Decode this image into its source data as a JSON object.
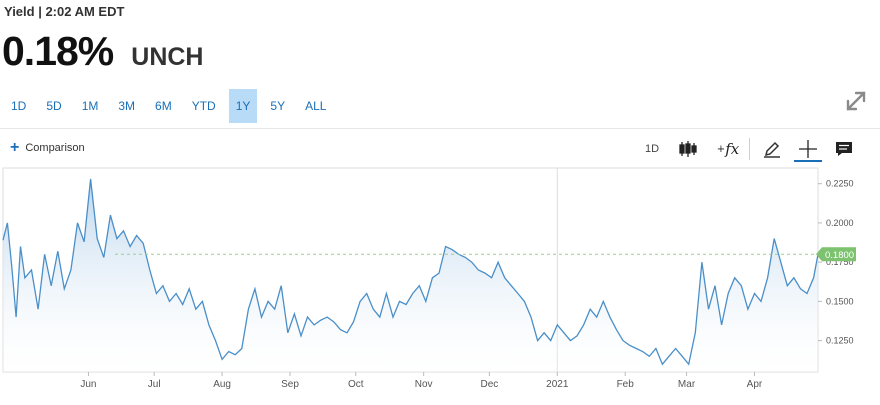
{
  "header": {
    "status_text": "Yield | 2:02 AM EDT",
    "price": "0.18%",
    "change": "UNCH"
  },
  "range_tabs": [
    {
      "label": "1D",
      "active": false
    },
    {
      "label": "5D",
      "active": false
    },
    {
      "label": "1M",
      "active": false
    },
    {
      "label": "3M",
      "active": false
    },
    {
      "label": "6M",
      "active": false
    },
    {
      "label": "YTD",
      "active": false
    },
    {
      "label": "1Y",
      "active": true
    },
    {
      "label": "5Y",
      "active": false
    },
    {
      "label": "ALL",
      "active": false
    }
  ],
  "toolbar": {
    "comparison_label": "Comparison",
    "interval_label": "1D",
    "icons": [
      "candlestick-icon",
      "function-icon",
      "pencil-icon",
      "crosshair-icon",
      "comment-icon",
      "expand-icon"
    ]
  },
  "colors": {
    "accent": "#1a6fb7",
    "line": "#4a8fc8",
    "fill": "#dbe9f6",
    "current_value_badge": "#7cc26f"
  },
  "chart_data": {
    "type": "area",
    "title": "",
    "xlabel": "",
    "ylabel": "",
    "x_tick_labels": [
      "Jun",
      "Jul",
      "Aug",
      "Sep",
      "Oct",
      "Nov",
      "Dec",
      "2021",
      "Feb",
      "Mar",
      "Apr"
    ],
    "y_tick_labels": [
      "0.2250",
      "0.2000",
      "0.1750",
      "0.1500",
      "0.1250"
    ],
    "y_ticks": [
      0.225,
      0.2,
      0.175,
      0.15,
      0.125
    ],
    "ylim": [
      0.105,
      0.235
    ],
    "x_range": [
      "2020-04-23",
      "2021-04-30"
    ],
    "current_value": 0.18,
    "current_value_label": "0.1800",
    "grid": "vertical line at year boundary",
    "series": [
      {
        "dates": [
          "2020-04-23",
          "2020-04-25",
          "2020-04-27",
          "2020-04-29",
          "2020-05-01",
          "2020-05-03",
          "2020-05-06",
          "2020-05-09",
          "2020-05-12",
          "2020-05-15",
          "2020-05-18",
          "2020-05-21",
          "2020-05-24",
          "2020-05-27",
          "2020-05-30",
          "2020-06-02",
          "2020-06-05",
          "2020-06-08",
          "2020-06-11",
          "2020-06-14",
          "2020-06-17",
          "2020-06-20",
          "2020-06-23",
          "2020-06-26",
          "2020-06-29",
          "2020-07-02",
          "2020-07-05",
          "2020-07-08",
          "2020-07-11",
          "2020-07-14",
          "2020-07-17",
          "2020-07-20",
          "2020-07-23",
          "2020-07-26",
          "2020-07-29",
          "2020-08-01",
          "2020-08-04",
          "2020-08-07",
          "2020-08-10",
          "2020-08-13",
          "2020-08-16",
          "2020-08-19",
          "2020-08-22",
          "2020-08-25",
          "2020-08-28",
          "2020-08-31",
          "2020-09-03",
          "2020-09-06",
          "2020-09-09",
          "2020-09-12",
          "2020-09-15",
          "2020-09-18",
          "2020-09-21",
          "2020-09-24",
          "2020-09-27",
          "2020-09-30",
          "2020-10-03",
          "2020-10-06",
          "2020-10-09",
          "2020-10-12",
          "2020-10-15",
          "2020-10-18",
          "2020-10-21",
          "2020-10-24",
          "2020-10-27",
          "2020-10-30",
          "2020-11-02",
          "2020-11-05",
          "2020-11-08",
          "2020-11-11",
          "2020-11-14",
          "2020-11-17",
          "2020-11-20",
          "2020-11-23",
          "2020-11-26",
          "2020-11-29",
          "2020-12-02",
          "2020-12-05",
          "2020-12-08",
          "2020-12-11",
          "2020-12-14",
          "2020-12-17",
          "2020-12-20",
          "2020-12-23",
          "2020-12-26",
          "2020-12-29",
          "2021-01-01",
          "2021-01-04",
          "2021-01-07",
          "2021-01-10",
          "2021-01-13",
          "2021-01-16",
          "2021-01-19",
          "2021-01-22",
          "2021-01-25",
          "2021-01-28",
          "2021-01-31",
          "2021-02-03",
          "2021-02-06",
          "2021-02-09",
          "2021-02-12",
          "2021-02-15",
          "2021-02-18",
          "2021-02-21",
          "2021-02-24",
          "2021-02-27",
          "2021-03-02",
          "2021-03-05",
          "2021-03-08",
          "2021-03-11",
          "2021-03-14",
          "2021-03-17",
          "2021-03-20",
          "2021-03-23",
          "2021-03-26",
          "2021-03-29",
          "2021-04-01",
          "2021-04-04",
          "2021-04-07",
          "2021-04-10",
          "2021-04-13",
          "2021-04-16",
          "2021-04-19",
          "2021-04-22",
          "2021-04-25",
          "2021-04-28",
          "2021-04-30"
        ],
        "values": [
          0.189,
          0.2,
          0.172,
          0.14,
          0.185,
          0.165,
          0.17,
          0.145,
          0.18,
          0.16,
          0.182,
          0.158,
          0.17,
          0.2,
          0.188,
          0.228,
          0.19,
          0.178,
          0.205,
          0.19,
          0.195,
          0.185,
          0.192,
          0.187,
          0.17,
          0.155,
          0.16,
          0.15,
          0.155,
          0.148,
          0.158,
          0.145,
          0.15,
          0.135,
          0.125,
          0.113,
          0.118,
          0.116,
          0.12,
          0.145,
          0.158,
          0.14,
          0.15,
          0.145,
          0.16,
          0.13,
          0.142,
          0.128,
          0.14,
          0.135,
          0.138,
          0.14,
          0.137,
          0.132,
          0.13,
          0.137,
          0.15,
          0.155,
          0.145,
          0.14,
          0.155,
          0.14,
          0.15,
          0.148,
          0.155,
          0.16,
          0.15,
          0.165,
          0.168,
          0.185,
          0.183,
          0.18,
          0.178,
          0.175,
          0.17,
          0.168,
          0.165,
          0.175,
          0.165,
          0.16,
          0.155,
          0.15,
          0.14,
          0.125,
          0.13,
          0.125,
          0.135,
          0.13,
          0.125,
          0.128,
          0.135,
          0.145,
          0.14,
          0.15,
          0.14,
          0.132,
          0.125,
          0.122,
          0.12,
          0.118,
          0.115,
          0.12,
          0.11,
          0.115,
          0.12,
          0.115,
          0.11,
          0.13,
          0.175,
          0.145,
          0.16,
          0.135,
          0.155,
          0.165,
          0.16,
          0.145,
          0.155,
          0.15,
          0.165,
          0.19,
          0.175,
          0.16,
          0.165,
          0.158,
          0.155,
          0.165,
          0.18
        ]
      }
    ]
  }
}
